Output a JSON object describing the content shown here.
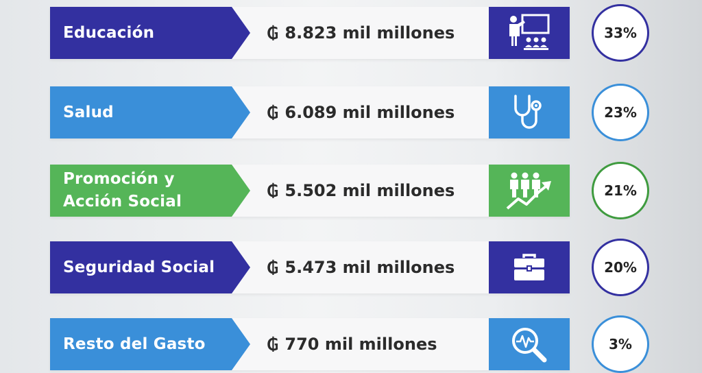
{
  "currency_symbol": "₲",
  "colors": {
    "dark_blue": "#3330a0",
    "light_blue": "#3a8fd9",
    "green": "#55b558",
    "green_ring": "#3f9b3f"
  },
  "rows": [
    {
      "label": "Educación",
      "amount": "8.823 mil millones",
      "percent": "33%",
      "icon": "teacher-presentation-icon",
      "color": "#3330a0"
    },
    {
      "label": "Salud",
      "amount": "6.089 mil millones",
      "percent": "23%",
      "icon": "stethoscope-icon",
      "color": "#3a8fd9"
    },
    {
      "label": "Promoción y\nAcción Social",
      "amount": "5.502 mil millones",
      "percent": "21%",
      "icon": "people-growth-icon",
      "color": "#55b558"
    },
    {
      "label": "Seguridad Social",
      "amount": "5.473 mil millones",
      "percent": "20%",
      "icon": "briefcase-icon",
      "color": "#3330a0"
    },
    {
      "label": "Resto del Gasto",
      "amount": "770 mil millones",
      "percent": "3%",
      "icon": "magnifier-pulse-icon",
      "color": "#3a8fd9"
    }
  ]
}
